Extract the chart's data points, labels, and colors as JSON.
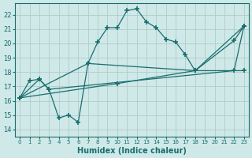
{
  "xlabel": "Humidex (Indice chaleur)",
  "bg_color": "#cfe8e8",
  "grid_color": "#b8d8d8",
  "line_color": "#1a6e6e",
  "xlim": [
    -0.5,
    23.5
  ],
  "ylim": [
    13.5,
    22.8
  ],
  "xticks": [
    0,
    1,
    2,
    3,
    4,
    5,
    6,
    7,
    8,
    9,
    10,
    11,
    12,
    13,
    14,
    15,
    16,
    17,
    18,
    19,
    20,
    21,
    22,
    23
  ],
  "yticks": [
    14,
    15,
    16,
    17,
    18,
    19,
    20,
    21,
    22
  ],
  "lines": [
    {
      "x": [
        0,
        1,
        2,
        3,
        4,
        5,
        6,
        7,
        8,
        9,
        10,
        11,
        12,
        13,
        14,
        15,
        16,
        17,
        18,
        22,
        23
      ],
      "y": [
        16.2,
        17.4,
        17.5,
        16.8,
        14.8,
        15.0,
        14.5,
        18.6,
        20.1,
        21.1,
        21.1,
        22.3,
        22.4,
        21.5,
        21.1,
        20.3,
        20.1,
        19.2,
        18.1,
        20.2,
        21.2
      ]
    },
    {
      "x": [
        0,
        2,
        3,
        22,
        23
      ],
      "y": [
        16.2,
        17.5,
        16.8,
        18.1,
        21.2
      ]
    },
    {
      "x": [
        0,
        7,
        18,
        23
      ],
      "y": [
        16.2,
        18.6,
        18.1,
        21.2
      ]
    },
    {
      "x": [
        0,
        10,
        18,
        23
      ],
      "y": [
        16.2,
        17.2,
        18.1,
        18.1
      ]
    }
  ]
}
